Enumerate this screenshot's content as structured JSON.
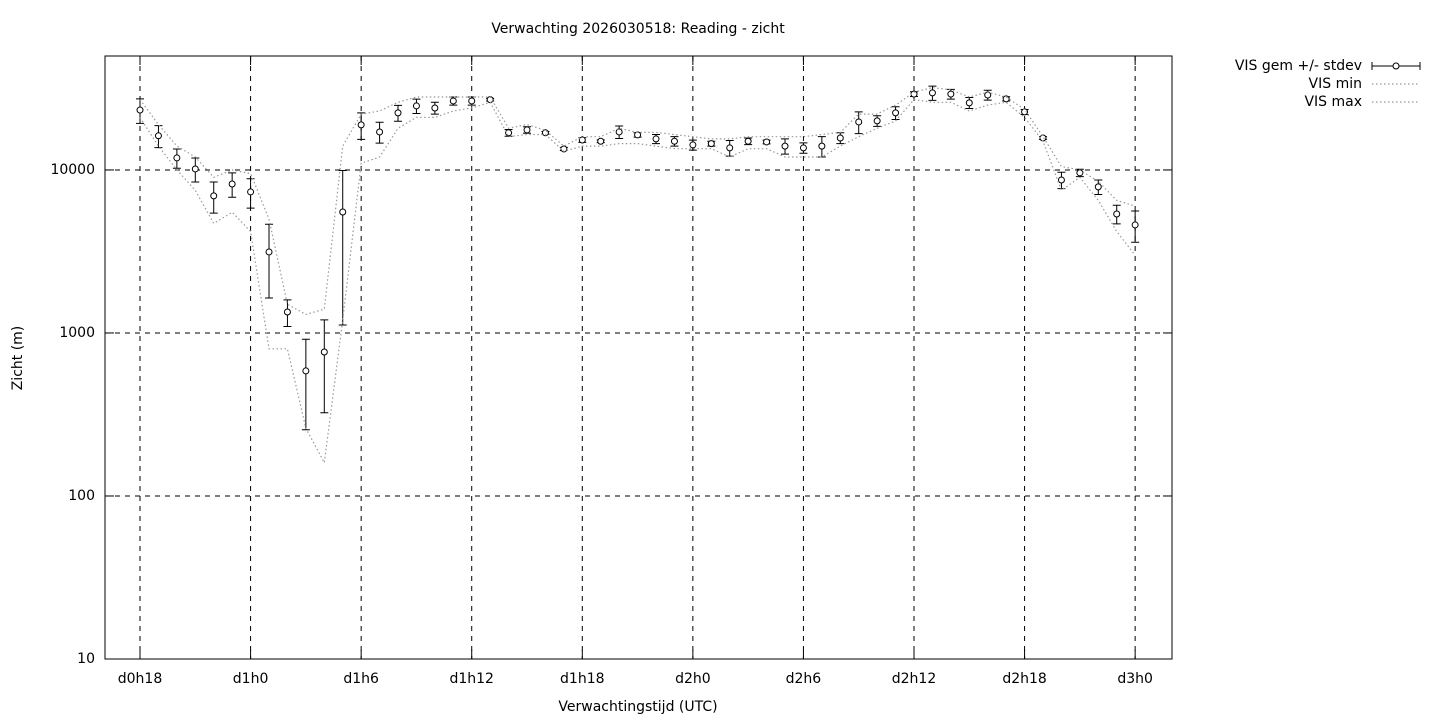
{
  "chart_data": {
    "type": "errorbar",
    "title": "Verwachting 2026030518: Reading - zicht",
    "x_label": "Verwachtingstijd (UTC)",
    "y_label": "Zicht (m)",
    "x": [
      18,
      19,
      20,
      21,
      22,
      23,
      24,
      25,
      26,
      27,
      28,
      29,
      30,
      31,
      32,
      33,
      34,
      35,
      36,
      37,
      38,
      39,
      40,
      41,
      42,
      43,
      44,
      45,
      46,
      47,
      48,
      49,
      50,
      51,
      52,
      53,
      54,
      55,
      56,
      57,
      58,
      59,
      60,
      61,
      62,
      63,
      64,
      65,
      66,
      67,
      68,
      69,
      70,
      71,
      72
    ],
    "series": [
      {
        "name": "VIS gem +/- stdev",
        "color": "#000000",
        "style": "errorbar",
        "values": [
          23300,
          16200,
          11850,
          10140,
          6930,
          8200,
          7330,
          3140,
          1345,
          585,
          764,
          5520,
          18900,
          17100,
          22400,
          24700,
          24000,
          26500,
          26500,
          27000,
          16900,
          17600,
          16900,
          13450,
          15270,
          15000,
          17100,
          16400,
          15500,
          15000,
          14240,
          14500,
          13650,
          15000,
          14850,
          14000,
          13650,
          14000,
          15700,
          19700,
          20000,
          22400,
          29200,
          29700,
          29200,
          25800,
          28800,
          27300,
          22700,
          15700,
          8680,
          9600,
          7870,
          5370,
          4600
        ],
        "errors": [
          4000,
          2500,
          1600,
          1700,
          1500,
          1400,
          1500,
          1500,
          250,
          330,
          440,
          4400,
          3500,
          2500,
          2500,
          2500,
          2000,
          1500,
          1500,
          500,
          800,
          800,
          300,
          300,
          500,
          300,
          1500,
          500,
          1000,
          1000,
          1000,
          500,
          1500,
          700,
          400,
          1500,
          1000,
          2000,
          1200,
          3000,
          1500,
          2000,
          1000,
          3000,
          2000,
          2000,
          2000,
          800,
          800,
          300,
          1000,
          500,
          800,
          700,
          1000
        ]
      },
      {
        "name": "VIS min",
        "color": "#999999",
        "style": "dotted",
        "values": [
          21000,
          14000,
          10000,
          7500,
          4700,
          5500,
          4200,
          800,
          800,
          260,
          160,
          1200,
          11000,
          12000,
          18000,
          21000,
          21000,
          23000,
          24000,
          26000,
          16000,
          16500,
          16500,
          13000,
          14000,
          14000,
          14500,
          14500,
          14000,
          13500,
          13500,
          13500,
          12000,
          13500,
          13500,
          12000,
          12000,
          12000,
          14000,
          16000,
          18000,
          20000,
          27000,
          26000,
          26000,
          23000,
          25000,
          26000,
          21000,
          15000,
          7500,
          9000,
          6500,
          4200,
          3000
        ]
      },
      {
        "name": "VIS max",
        "color": "#999999",
        "style": "dotted",
        "values": [
          27000,
          19000,
          14000,
          12000,
          9000,
          10000,
          9500,
          5000,
          1500,
          1300,
          1400,
          14000,
          22000,
          23000,
          26000,
          28000,
          28000,
          28000,
          28000,
          28000,
          18000,
          19000,
          17500,
          14000,
          16000,
          16000,
          18000,
          17000,
          17000,
          16500,
          16000,
          15500,
          15500,
          16000,
          16000,
          16000,
          16000,
          16500,
          17000,
          22000,
          22000,
          25000,
          30000,
          32000,
          31000,
          28000,
          30000,
          28000,
          23500,
          16000,
          10500,
          10000,
          8500,
          6500,
          6000
        ]
      }
    ],
    "xlim": [
      16.1,
      74
    ],
    "xticks": [
      {
        "value": 18,
        "label": "d0h18"
      },
      {
        "value": 24,
        "label": "d1h0"
      },
      {
        "value": 30,
        "label": "d1h6"
      },
      {
        "value": 36,
        "label": "d1h12"
      },
      {
        "value": 42,
        "label": "d1h18"
      },
      {
        "value": 48,
        "label": "d2h0"
      },
      {
        "value": 54,
        "label": "d2h6"
      },
      {
        "value": 60,
        "label": "d2h12"
      },
      {
        "value": 66,
        "label": "d2h18"
      },
      {
        "value": 72,
        "label": "d3h0"
      }
    ],
    "ylim": [
      10,
      50000
    ],
    "yticks": [
      10,
      100,
      1000,
      10000
    ],
    "y_scale": "log",
    "grid": true,
    "legend": "outside-top-right"
  }
}
